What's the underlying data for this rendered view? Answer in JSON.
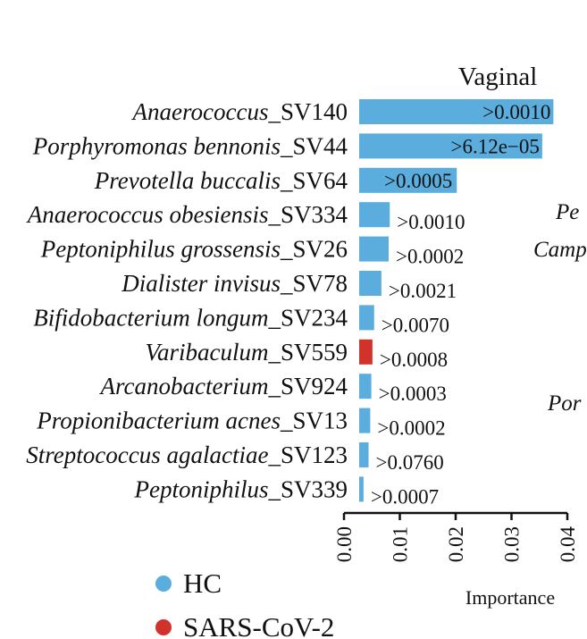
{
  "chart_data": {
    "type": "bar",
    "orientation": "horizontal",
    "title": "Vaginal",
    "xlabel": "Importance",
    "xlim": [
      0.0,
      0.04
    ],
    "xticks": [
      "0.00",
      "0.01",
      "0.02",
      "0.03",
      "0.04"
    ],
    "categories": [
      {
        "prefix": "Anaerococcus",
        "suffix": "_SV140"
      },
      {
        "prefix": "Porphyromonas bennonis",
        "suffix": "_SV44"
      },
      {
        "prefix": "Prevotella buccalis",
        "suffix": "_SV64"
      },
      {
        "prefix": "Anaerococcus obesiensis",
        "suffix": "_SV334"
      },
      {
        "prefix": "Peptoniphilus grossensis",
        "suffix": "_SV26"
      },
      {
        "prefix": "Dialister invisus",
        "suffix": "_SV78"
      },
      {
        "prefix": "Bifidobacterium longum",
        "suffix": "_SV234"
      },
      {
        "prefix": "Varibaculum",
        "suffix": "_SV559"
      },
      {
        "prefix": "Arcanobacterium",
        "suffix": "_SV924"
      },
      {
        "prefix": "Propionibacterium acnes",
        "suffix": "_SV13"
      },
      {
        "prefix": "Streptococcus agalactiae",
        "suffix": "_SV123"
      },
      {
        "prefix": "Peptoniphilus",
        "suffix": "_SV339"
      }
    ],
    "values": [
      0.0375,
      0.0355,
      0.0202,
      0.0082,
      0.008,
      0.0067,
      0.0054,
      0.0051,
      0.0049,
      0.0047,
      0.0044,
      0.0035
    ],
    "labels": [
      ">0.0010",
      ">6.12e−05",
      ">0.0005",
      ">0.0010",
      ">0.0002",
      ">0.0021",
      ">0.0070",
      ">0.0008",
      ">0.0003",
      ">0.0002",
      ">0.0760",
      ">0.0007"
    ],
    "label_inside": [
      true,
      true,
      true,
      false,
      false,
      false,
      false,
      false,
      false,
      false,
      false,
      false
    ],
    "groups": [
      "HC",
      "HC",
      "HC",
      "HC",
      "HC",
      "HC",
      "HC",
      "HC",
      "HC",
      "HC",
      "HC",
      "HC"
    ],
    "group_override": {
      "7": "SARS-CoV-2"
    },
    "legend": [
      {
        "name": "HC",
        "color": "#5aaddc"
      },
      {
        "name": "SARS-CoV-2",
        "color": "#d1322b"
      }
    ],
    "legend_position": "bottom-left",
    "grid": false
  },
  "clipped_fragments": [
    "Pe",
    "Camp",
    "Por"
  ]
}
